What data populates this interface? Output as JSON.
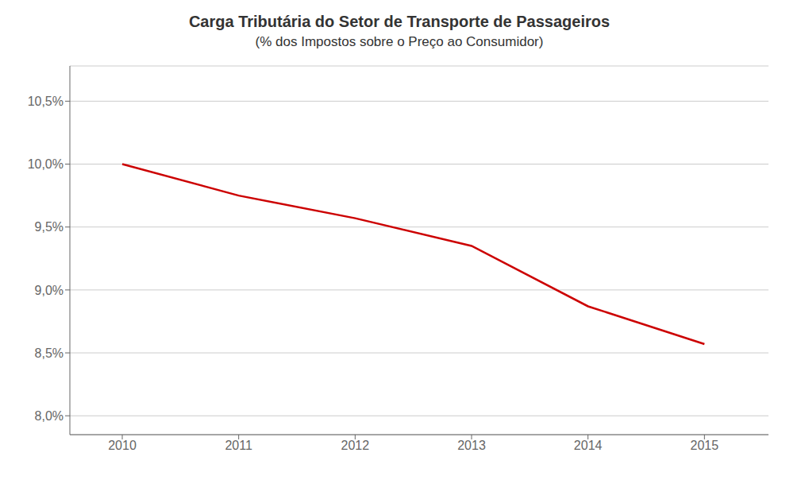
{
  "chart_data": {
    "type": "line",
    "title": "Carga Tributária do Setor de Transporte de Passageiros",
    "subtitle": "(% dos Impostos sobre o Preço ao Consumidor)",
    "x": [
      2010,
      2011,
      2012,
      2013,
      2014,
      2015
    ],
    "values": [
      10.0,
      9.75,
      9.57,
      9.35,
      8.87,
      8.57
    ],
    "color": "#cc0000",
    "xlim": [
      2009.55,
      2015.55
    ],
    "xticks": [
      2010,
      2011,
      2012,
      2013,
      2014,
      2015
    ],
    "ylim": [
      7.85,
      10.78
    ],
    "yticks": [
      {
        "value": 8.0,
        "label": "8,0%"
      },
      {
        "value": 8.5,
        "label": "8,5%"
      },
      {
        "value": 9.0,
        "label": "9,0%"
      },
      {
        "value": 9.5,
        "label": "9,5%"
      },
      {
        "value": 10.0,
        "label": "10,0%"
      },
      {
        "value": 10.5,
        "label": "10,5%"
      }
    ],
    "grid": true
  }
}
